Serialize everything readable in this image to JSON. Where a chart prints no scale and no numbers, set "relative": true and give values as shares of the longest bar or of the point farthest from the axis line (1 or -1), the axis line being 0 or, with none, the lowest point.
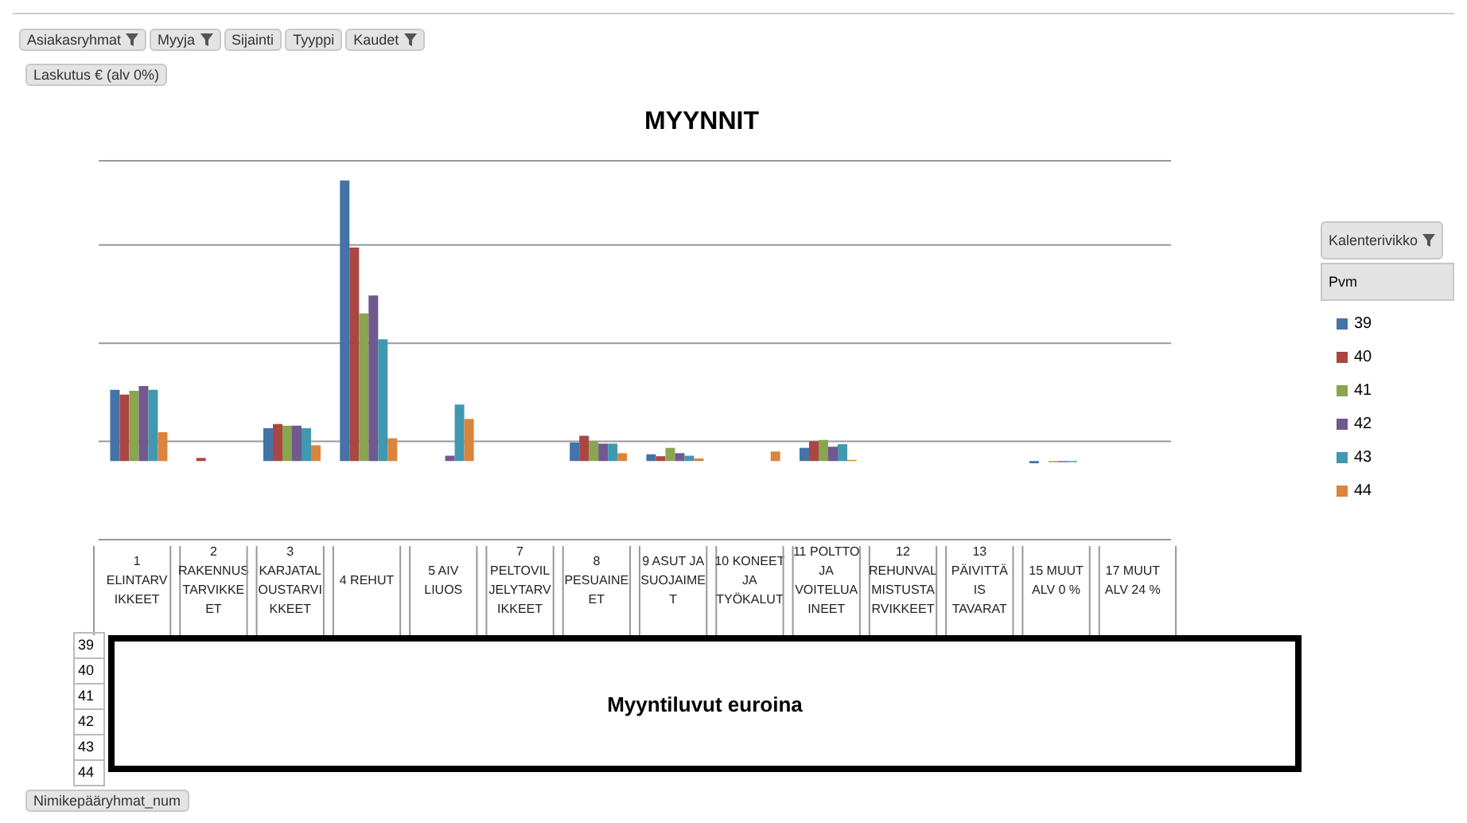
{
  "chart_data": {
    "type": "bar",
    "title": "MYYNNIT",
    "relative": true,
    "grid": true,
    "legend": "right",
    "legend_title": "Pvm",
    "categories": [
      "1 ELINTARVIKKEET",
      "2 RAKENNUSTARVIKKEET",
      "3 KARJATALOUSTARVIKKEET",
      "4 REHUT",
      "5 AIV LIUOS",
      "7 PELTOVILJELYTARVIKKEET",
      "8 PESUAINEET",
      "9 ASUT JA SUOJAIMET",
      "10 KONEET JA TYÖKALUT",
      "11 POLTTO JA VOITELUAINEET",
      "12 REHUNVALMISTUSTARVIKKEET",
      "13 PÄIVITTÄIS TAVARAT",
      "15 MUUT ALV 0 %",
      "17 MUUT ALV 24 %"
    ],
    "series": [
      {
        "name": "39",
        "color": "#4572a7",
        "values": [
          0.254,
          null,
          0.117,
          1,
          null,
          null,
          0.066,
          0.024,
          null,
          0.047,
          null,
          null,
          -0.008,
          null
        ]
      },
      {
        "name": "40",
        "color": "#aa4643",
        "values": [
          0.237,
          0.011,
          0.132,
          0.761,
          null,
          null,
          0.09,
          0.017,
          null,
          0.07,
          null,
          null,
          null,
          null
        ]
      },
      {
        "name": "41",
        "color": "#89a54e",
        "values": [
          0.25,
          null,
          0.126,
          0.526,
          null,
          null,
          0.071,
          0.047,
          null,
          0.075,
          null,
          null,
          -0.004,
          null
        ]
      },
      {
        "name": "42",
        "color": "#71588f",
        "values": [
          0.267,
          null,
          0.126,
          0.59,
          0.019,
          null,
          0.062,
          0.028,
          null,
          0.051,
          null,
          null,
          -0.004,
          null
        ]
      },
      {
        "name": "43",
        "color": "#4198af",
        "values": [
          0.254,
          null,
          0.117,
          0.434,
          0.201,
          null,
          0.062,
          0.019,
          null,
          0.06,
          null,
          null,
          -0.004,
          null
        ]
      },
      {
        "name": "44",
        "color": "#db843d",
        "values": [
          0.103,
          null,
          0.056,
          0.081,
          0.15,
          null,
          0.028,
          0.009,
          0.034,
          0.004,
          null,
          null,
          null,
          null
        ]
      }
    ],
    "annotations": [
      "Asiakasryhmat",
      "Myyja",
      "Sijainti",
      "Tyyppi",
      "Kaudet",
      "Laskutus € (alv 0%)",
      "Kalenterivikko",
      "Myyntiluvut euroina",
      "Nimikepääryhmat_num"
    ]
  }
}
